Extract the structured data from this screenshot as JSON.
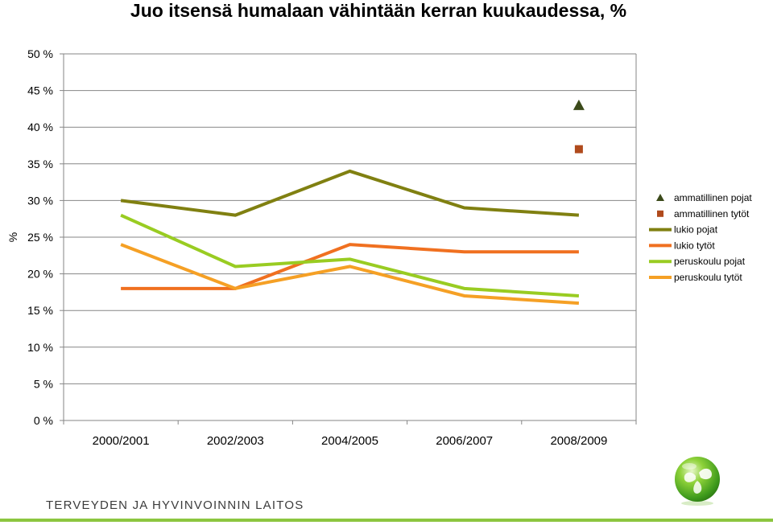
{
  "header": {
    "title": "Juo itsensä humalaan vähintään kerran kuukaudessa, %"
  },
  "footer": {
    "organization": "TERVEYDEN JA HYVINVOINNIN LAITOS"
  },
  "chart_data": {
    "type": "line",
    "title": "Juo itsensä humalaan vähintään kerran kuukaudessa, %",
    "ylabel": "%",
    "xlabel": "",
    "ylim": [
      0,
      50
    ],
    "ytick_step": 5,
    "ytick_suffix": " %",
    "grid": true,
    "legend_position": "right",
    "categories": [
      "2000/2001",
      "2002/2003",
      "2004/2005",
      "2006/2007",
      "2008/2009"
    ],
    "series": [
      {
        "name": "ammatillinen pojat",
        "marker": "triangle",
        "color": "#3b4a1a",
        "values": [
          null,
          null,
          null,
          null,
          43
        ]
      },
      {
        "name": "ammatillinen tytöt",
        "marker": "square",
        "color": "#b04a1c",
        "values": [
          null,
          null,
          null,
          null,
          37
        ]
      },
      {
        "name": "lukio pojat",
        "marker": "line",
        "color": "#808011",
        "values": [
          30,
          28,
          34,
          29,
          28
        ]
      },
      {
        "name": "lukio tytöt",
        "marker": "line",
        "color": "#f07020",
        "values": [
          18,
          18,
          24,
          23,
          23
        ]
      },
      {
        "name": "peruskoulu pojat",
        "marker": "line",
        "color": "#99cc22",
        "values": [
          28,
          21,
          22,
          18,
          17
        ]
      },
      {
        "name": "peruskoulu tytöt",
        "marker": "line",
        "color": "#f5a025",
        "values": [
          24,
          18,
          21,
          17,
          16
        ]
      }
    ]
  }
}
